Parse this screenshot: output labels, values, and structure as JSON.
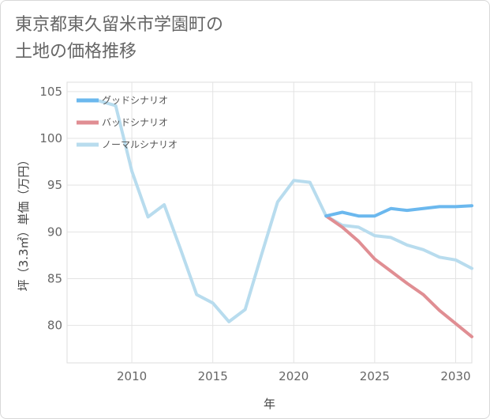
{
  "title_line1": "東京都東久留米市学園町の",
  "title_line2": "土地の価格推移",
  "chart_data": {
    "type": "line",
    "xlabel": "年",
    "ylabel": "坪（3.3㎡）単価（万円）",
    "xlim": [
      2006,
      2031
    ],
    "ylim": [
      76,
      106
    ],
    "x_ticks": [
      2010,
      2015,
      2020,
      2025,
      2030
    ],
    "y_ticks": [
      80,
      85,
      90,
      95,
      100,
      105
    ],
    "grid": true,
    "legend_position": "top-left",
    "series": [
      {
        "name": "グッドシナリオ",
        "color": "#6bb8ee",
        "x": [
          2022,
          2023,
          2024,
          2025,
          2026,
          2027,
          2028,
          2029,
          2030,
          2031
        ],
        "values": [
          91.7,
          92.1,
          91.7,
          91.7,
          92.5,
          92.3,
          92.5,
          92.7,
          92.7,
          92.8
        ]
      },
      {
        "name": "バッドシナリオ",
        "color": "#e08e93",
        "x": [
          2022,
          2023,
          2024,
          2025,
          2026,
          2027,
          2028,
          2029,
          2030,
          2031
        ],
        "values": [
          91.7,
          90.5,
          89.0,
          87.1,
          85.8,
          84.5,
          83.3,
          81.6,
          80.2,
          78.8
        ]
      },
      {
        "name": "ノーマルシナリオ",
        "color": "#b8dcee",
        "x": [
          2008,
          2009,
          2010,
          2011,
          2012,
          2013,
          2014,
          2015,
          2016,
          2017,
          2018,
          2019,
          2020,
          2021,
          2022,
          2023,
          2024,
          2025,
          2026,
          2027,
          2028,
          2029,
          2030,
          2031
        ],
        "values": [
          104.0,
          103.5,
          96.5,
          91.6,
          92.9,
          88.2,
          83.3,
          82.4,
          80.4,
          81.7,
          87.5,
          93.2,
          95.5,
          95.3,
          91.7,
          90.7,
          90.5,
          89.6,
          89.4,
          88.6,
          88.1,
          87.3,
          87.0,
          86.1
        ]
      }
    ]
  }
}
